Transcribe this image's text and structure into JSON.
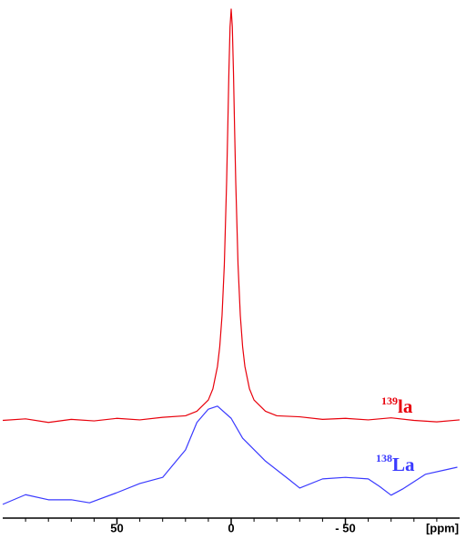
{
  "chart_data": {
    "type": "line",
    "xlabel": "[ppm]",
    "xlim": [
      100,
      -100
    ],
    "ylim": [
      0,
      100
    ],
    "xticks": [
      50,
      0,
      {
        "value": -50,
        "label": "- 50"
      }
    ],
    "xminorticks": [
      90,
      80,
      70,
      60,
      40,
      30,
      20,
      10,
      -10,
      -20,
      -30,
      -40,
      -60,
      -70,
      -80,
      -90
    ],
    "series": [
      {
        "name": "la",
        "isotope": "139",
        "color": "#e8000b",
        "x": [
          100,
          90,
          80,
          70,
          60,
          50,
          40,
          30,
          20,
          15,
          10,
          8,
          6,
          5,
          4,
          3,
          2,
          1.5,
          1,
          0.5,
          0,
          -0.5,
          -1,
          -1.5,
          -2,
          -3,
          -4,
          -5,
          -6,
          -8,
          -10,
          -15,
          -20,
          -30,
          -40,
          -50,
          -60,
          -70,
          -80,
          -90,
          -100
        ],
        "values": [
          19.2,
          19.5,
          18.8,
          19.4,
          19.1,
          19.6,
          19.3,
          19.8,
          20.1,
          21,
          23.2,
          25.4,
          29.8,
          33.7,
          39.8,
          49.8,
          66,
          76.4,
          87.6,
          96.5,
          100,
          96.5,
          87.6,
          76.4,
          66,
          49.8,
          39.8,
          33.7,
          29.8,
          25.4,
          23.2,
          21,
          20.1,
          19.9,
          19.4,
          19.6,
          19.3,
          19.7,
          19.2,
          18.9,
          19.3
        ]
      },
      {
        "name": "La",
        "isotope": "138",
        "color": "#3a3aff",
        "x": [
          100,
          90,
          80,
          70,
          62,
          50,
          40,
          30,
          20,
          15,
          10,
          6,
          0,
          -5,
          -15,
          -25,
          -30,
          -40,
          -50,
          -60,
          -65,
          -70,
          -75,
          -85,
          -95,
          -99
        ],
        "values": [
          2.7,
          4.6,
          3.6,
          3.6,
          3.0,
          5,
          6.8,
          8,
          13.4,
          18.8,
          21.4,
          22,
          19.6,
          15.7,
          11.2,
          7.7,
          5.9,
          7.7,
          8,
          7.7,
          6.2,
          4.5,
          5.7,
          8.6,
          9.6,
          10
        ]
      }
    ]
  }
}
